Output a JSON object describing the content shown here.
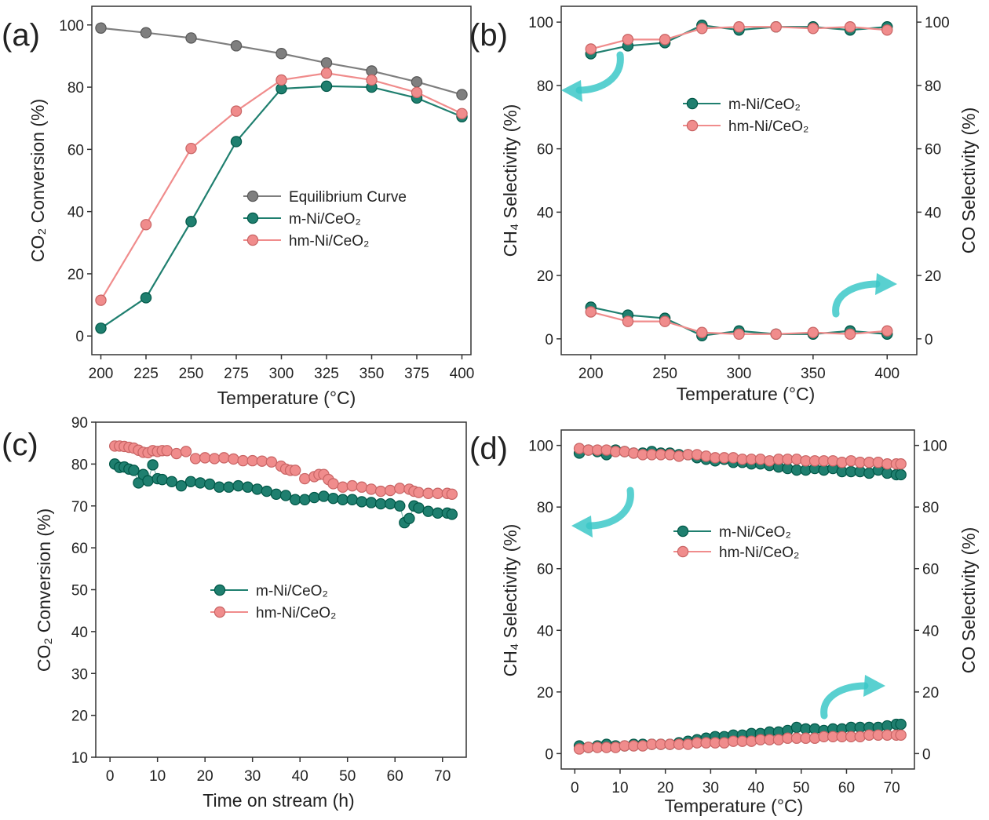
{
  "figure": {
    "colors": {
      "equilibrium": "#7f7f7f",
      "m": "#1f7f6f",
      "hm": "#f08c8c",
      "arrow": "#3cc8c8",
      "axis": "#333333"
    }
  },
  "chart_data": [
    {
      "panel": "(a)",
      "type": "line",
      "xlabel": "Temperature (°C)",
      "ylabel": "CO₂ Conversion (%)",
      "xlim": [
        195,
        405
      ],
      "ylim": [
        -6,
        106
      ],
      "xticks": [
        200,
        225,
        250,
        275,
        300,
        325,
        350,
        375,
        400
      ],
      "yticks": [
        0,
        20,
        40,
        60,
        80,
        100
      ],
      "x": [
        200,
        225,
        250,
        275,
        300,
        325,
        350,
        375,
        400
      ],
      "series": [
        {
          "name": "Equilibrium Curve",
          "color": "#7f7f7f",
          "values": [
            99,
            97.5,
            95.8,
            93.3,
            90.8,
            87.8,
            85.2,
            81.7,
            77.6
          ]
        },
        {
          "name": "m-Ni/CeO₂",
          "color": "#1f7f6f",
          "values": [
            2.5,
            12.3,
            36.8,
            62.5,
            79.5,
            80.3,
            80,
            76.5,
            70.5
          ]
        },
        {
          "name": "hm-Ni/CeO₂",
          "color": "#f08c8c",
          "values": [
            11.5,
            35.8,
            60.3,
            72.3,
            82.3,
            84.5,
            82.3,
            78.3,
            71.5
          ]
        }
      ],
      "legend": "center-right"
    },
    {
      "panel": "(b)",
      "type": "line",
      "xlabel": "Temperature (°C)",
      "ylabel": "CH₄ Selectivity (%)",
      "ylabel_right": "CO Selectivity (%)",
      "xlim": [
        180,
        420
      ],
      "ylim": [
        -5,
        105
      ],
      "xticks": [
        200,
        250,
        300,
        350,
        400
      ],
      "yticks": [
        0,
        20,
        40,
        60,
        80,
        100
      ],
      "x": [
        200,
        225,
        250,
        275,
        300,
        325,
        350,
        375,
        400
      ],
      "series": [
        {
          "name": "m-Ni/CeO₂",
          "color": "#1f7f6f",
          "role": "CH4",
          "values": [
            90,
            92.5,
            93.5,
            99,
            97.5,
            98.5,
            98.5,
            97.5,
            98.5
          ]
        },
        {
          "name": "hm-Ni/CeO₂",
          "color": "#f08c8c",
          "role": "CH4",
          "values": [
            91.5,
            94.5,
            94.5,
            98,
            98.5,
            98.5,
            98,
            98.5,
            97.5
          ]
        },
        {
          "name": "m-Ni/CeO₂",
          "color": "#1f7f6f",
          "role": "CO",
          "values": [
            10,
            7.5,
            6.5,
            1,
            2.5,
            1.5,
            1.5,
            2.5,
            1.5
          ]
        },
        {
          "name": "hm-Ni/CeO₂",
          "color": "#f08c8c",
          "role": "CO",
          "values": [
            8.5,
            5.5,
            5.5,
            2,
            1.5,
            1.5,
            2,
            1.5,
            2.5
          ]
        }
      ],
      "legend": "top-center"
    },
    {
      "panel": "(c)",
      "type": "scatter",
      "xlabel": "Time on stream (h)",
      "ylabel": "CO₂ Conversion (%)",
      "xlim": [
        -3,
        75
      ],
      "ylim": [
        10,
        90
      ],
      "xticks": [
        0,
        10,
        20,
        30,
        40,
        50,
        60,
        70
      ],
      "yticks": [
        10,
        20,
        30,
        40,
        50,
        60,
        70,
        80,
        90
      ],
      "series": [
        {
          "name": "m-Ni/CeO₂",
          "color": "#1f7f6f",
          "x": [
            1,
            2,
            3,
            4,
            5,
            6,
            7,
            8,
            9,
            10,
            11,
            13,
            15,
            17,
            19,
            21,
            23,
            25,
            27,
            29,
            31,
            33,
            35,
            37,
            39,
            41,
            43,
            45,
            47,
            49,
            51,
            53,
            55,
            57,
            59,
            61,
            62,
            63,
            64,
            65,
            67,
            69,
            71,
            72
          ],
          "values": [
            80,
            79.2,
            79.3,
            78.8,
            78.5,
            75.5,
            77.5,
            76,
            79.8,
            76.5,
            76.3,
            75.8,
            74.8,
            75.8,
            75.5,
            75.2,
            74.5,
            74.5,
            74.8,
            74.5,
            74,
            73.5,
            72.8,
            72.5,
            71.5,
            71.5,
            72,
            72.3,
            71.8,
            71.5,
            71.5,
            71,
            70.8,
            70.5,
            70.5,
            70,
            66,
            67,
            70,
            69.5,
            68.7,
            68.3,
            68.3,
            68
          ]
        },
        {
          "name": "hm-Ni/CeO₂",
          "color": "#f08c8c",
          "x": [
            1,
            2,
            3,
            4,
            5,
            6,
            7,
            8,
            9,
            10,
            11,
            12,
            14,
            16,
            18,
            20,
            22,
            24,
            26,
            28,
            30,
            32,
            34,
            36,
            37,
            38,
            39,
            41,
            43,
            44,
            45,
            46,
            47,
            49,
            51,
            53,
            55,
            57,
            59,
            61,
            63,
            64,
            65,
            67,
            69,
            71,
            72
          ],
          "values": [
            84.3,
            84.3,
            84.2,
            84,
            83.8,
            83.3,
            82.8,
            82.7,
            83.2,
            83,
            83.2,
            83.2,
            82.5,
            83,
            81.3,
            81.5,
            81.3,
            81.5,
            81.2,
            80.8,
            80.8,
            80.7,
            80.5,
            79.5,
            78.8,
            78.5,
            78.5,
            76.5,
            77,
            77.5,
            77.5,
            76.3,
            75.3,
            74.5,
            74.8,
            74.5,
            74,
            73.5,
            73.7,
            74.2,
            74,
            73.5,
            73.2,
            73,
            73,
            73,
            72.8
          ]
        }
      ],
      "legend": "center"
    },
    {
      "panel": "(d)",
      "type": "scatter",
      "xlabel": "Temperature (°C)",
      "ylabel": "CH₄ Selectivity (%)",
      "ylabel_right": "CO Selectivity (%)",
      "xlim": [
        -3,
        75
      ],
      "ylim": [
        -5,
        105
      ],
      "xticks": [
        0,
        10,
        20,
        30,
        40,
        50,
        60,
        70
      ],
      "yticks": [
        0,
        20,
        40,
        60,
        80,
        100
      ],
      "series": [
        {
          "name": "m-Ni/CeO₂",
          "color": "#1f7f6f",
          "role": "CH4",
          "x": [
            1,
            3,
            5,
            7,
            9,
            11,
            13,
            15,
            17,
            19,
            21,
            23,
            25,
            27,
            29,
            31,
            33,
            35,
            37,
            39,
            41,
            43,
            45,
            47,
            49,
            51,
            53,
            55,
            57,
            59,
            61,
            63,
            65,
            67,
            69,
            71,
            72
          ],
          "values": [
            97.5,
            98.5,
            98,
            97,
            98.5,
            98,
            97.5,
            97.5,
            98,
            97.5,
            97.5,
            97,
            97,
            96,
            95.5,
            95,
            95.5,
            94.5,
            94.5,
            94,
            94,
            93.5,
            93,
            92.5,
            92,
            92,
            92.5,
            92,
            92.5,
            91.5,
            91.5,
            91.5,
            91,
            92,
            91,
            90.5,
            90.5
          ]
        },
        {
          "name": "hm-Ni/CeO₂",
          "color": "#f08c8c",
          "role": "CH4",
          "x": [
            1,
            3,
            5,
            7,
            9,
            11,
            13,
            15,
            17,
            19,
            21,
            23,
            25,
            27,
            29,
            31,
            33,
            35,
            37,
            39,
            41,
            43,
            45,
            47,
            49,
            51,
            53,
            55,
            57,
            59,
            61,
            63,
            65,
            67,
            69,
            71,
            72
          ],
          "values": [
            99,
            98.5,
            98.5,
            98.5,
            98,
            98,
            97.5,
            97,
            97,
            97,
            97,
            96.5,
            97,
            97,
            96.5,
            96,
            96,
            96,
            95.5,
            95.5,
            95.5,
            95,
            95.5,
            95.5,
            95.5,
            95,
            95,
            95,
            95,
            94.5,
            95,
            94.5,
            94.5,
            94.5,
            94,
            94,
            94
          ]
        },
        {
          "name": "m-Ni/CeO₂",
          "color": "#1f7f6f",
          "role": "CO",
          "x": [
            1,
            3,
            5,
            7,
            9,
            11,
            13,
            15,
            17,
            19,
            21,
            23,
            25,
            27,
            29,
            31,
            33,
            35,
            37,
            39,
            41,
            43,
            45,
            47,
            49,
            51,
            53,
            55,
            57,
            59,
            61,
            63,
            65,
            67,
            69,
            71,
            72
          ],
          "values": [
            2.5,
            2,
            2.5,
            3,
            2.5,
            2.5,
            3,
            3,
            3,
            3,
            3,
            3.5,
            4,
            4.5,
            5,
            5.5,
            5.5,
            6,
            6,
            6.5,
            6.5,
            7,
            7,
            7.5,
            8.5,
            8,
            8,
            7.5,
            8,
            8,
            8.5,
            8.5,
            8.5,
            8.5,
            9,
            9.5,
            9.5
          ]
        },
        {
          "name": "hm-Ni/CeO₂",
          "color": "#f08c8c",
          "role": "CO",
          "x": [
            1,
            3,
            5,
            7,
            9,
            11,
            13,
            15,
            17,
            19,
            21,
            23,
            25,
            27,
            29,
            31,
            33,
            35,
            37,
            39,
            41,
            43,
            45,
            47,
            49,
            51,
            53,
            55,
            57,
            59,
            61,
            63,
            65,
            67,
            69,
            71,
            72
          ],
          "values": [
            1.5,
            2,
            2,
            2,
            2,
            2.5,
            2.5,
            2.5,
            3,
            3,
            3,
            3,
            3,
            3.5,
            3.5,
            3.5,
            3.5,
            4,
            4,
            4,
            4.5,
            4.5,
            4.5,
            5,
            5,
            5,
            5,
            5.5,
            5.5,
            5.5,
            5.5,
            5.5,
            6,
            6,
            6,
            6,
            6
          ]
        }
      ],
      "legend": "top-center"
    }
  ]
}
